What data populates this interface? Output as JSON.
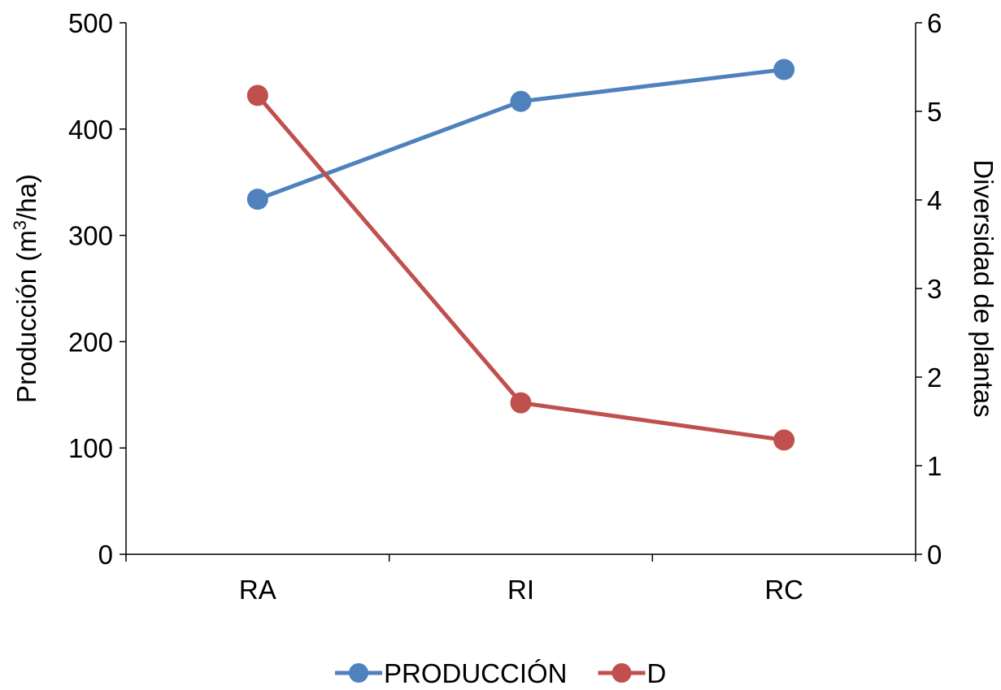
{
  "chart_data": {
    "type": "line",
    "categories": [
      "RA",
      "RI",
      "RC"
    ],
    "series": [
      {
        "name": "PRODUCCIÓN",
        "axis": "left",
        "color": "#4F81BD",
        "values": [
          334,
          426,
          456
        ]
      },
      {
        "name": "D",
        "axis": "right",
        "color": "#C0504D",
        "values": [
          5.18,
          1.71,
          1.29
        ]
      }
    ],
    "y_left": {
      "label_prefix": "Producción (m",
      "label_sup": "3",
      "label_suffix": "/ha)",
      "ylim": [
        0,
        500
      ],
      "ticks": [
        0,
        100,
        200,
        300,
        400,
        500
      ]
    },
    "y_right": {
      "label": "Diversidad de plantas",
      "ylim": [
        0,
        6
      ],
      "ticks": [
        0,
        1,
        2,
        3,
        4,
        5,
        6
      ]
    },
    "grid": false,
    "legend_position": "bottom"
  }
}
